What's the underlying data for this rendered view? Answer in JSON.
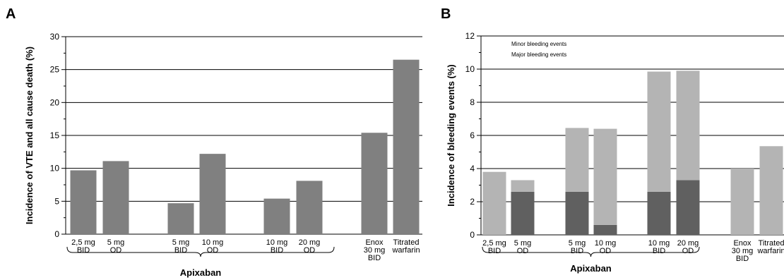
{
  "chart_data": [
    {
      "type": "bar",
      "panel_label": "A",
      "ylabel": "Incidence of VTE and all cause death (%)",
      "ylim": [
        0,
        30
      ],
      "yticks": [
        0,
        5,
        10,
        15,
        20,
        25,
        30
      ],
      "grid": true,
      "categories": [
        [
          "2,5 mg",
          "BID"
        ],
        [
          "5 mg",
          "OD"
        ],
        [
          "5 mg",
          "BID"
        ],
        [
          "10 mg",
          "OD"
        ],
        [
          "10 mg",
          "BID"
        ],
        [
          "20 mg",
          "OD"
        ],
        [
          "Enox",
          "30 mg",
          "BID"
        ],
        [
          "Titrated",
          "warfarin"
        ]
      ],
      "series": [
        {
          "values": [
            9.7,
            11.1,
            4.7,
            12.2,
            5.4,
            8.1,
            15.4,
            26.5
          ],
          "color": "#808080"
        }
      ],
      "group_label": "Apixaban"
    },
    {
      "type": "bar",
      "stacked": true,
      "panel_label": "B",
      "ylabel": "Incidence of bleeding events (%)",
      "ylim": [
        0,
        12
      ],
      "yticks": [
        0,
        2,
        4,
        6,
        8,
        10,
        12
      ],
      "grid": true,
      "legend_position": "top-left",
      "categories": [
        [
          "2,5 mg",
          "BID"
        ],
        [
          "5 mg",
          "OD"
        ],
        [
          "5 mg",
          "BID"
        ],
        [
          "10 mg",
          "OD"
        ],
        [
          "10 mg",
          "BID"
        ],
        [
          "20 mg",
          "OD"
        ],
        [
          "Enox",
          "30 mg",
          "BID"
        ],
        [
          "Titrated",
          "warfarin"
        ]
      ],
      "series": [
        {
          "name": "Major bleeding events",
          "values": [
            0,
            2.6,
            2.6,
            0.6,
            2.6,
            3.3,
            0,
            0
          ],
          "color": "#606060"
        },
        {
          "name": "Minor bleeding events",
          "values": [
            3.8,
            0.7,
            3.85,
            5.8,
            7.25,
            6.6,
            4.0,
            5.35
          ],
          "color": "#b4b4b4"
        }
      ],
      "group_label": "Apixaban"
    }
  ]
}
